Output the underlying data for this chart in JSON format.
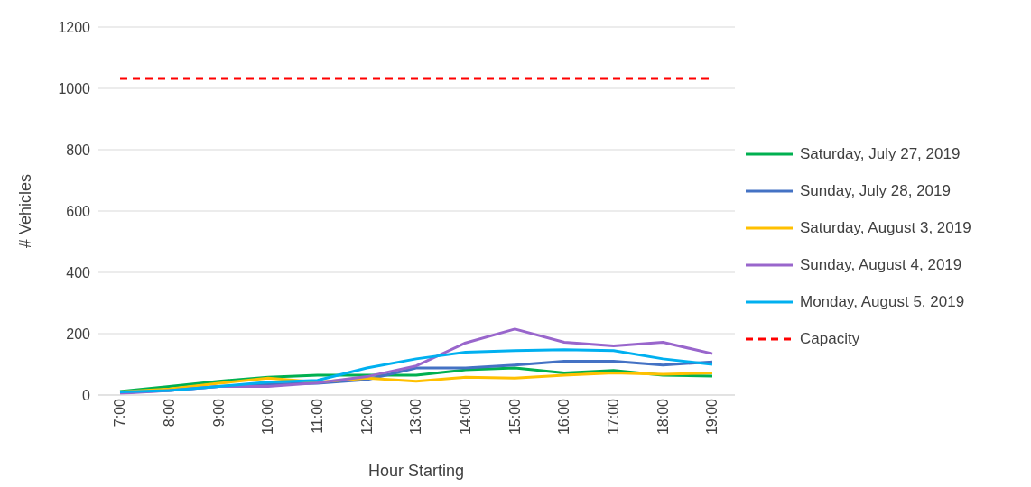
{
  "chart_data": {
    "type": "line",
    "xlabel": "Hour Starting",
    "ylabel": "# Vehicles",
    "categories": [
      "7:00",
      "8:00",
      "9:00",
      "10:00",
      "11:00",
      "12:00",
      "13:00",
      "14:00",
      "15:00",
      "16:00",
      "17:00",
      "18:00",
      "19:00"
    ],
    "series": [
      {
        "name": "Saturday, July 27, 2019",
        "color": "#00b050",
        "values": [
          12,
          28,
          45,
          58,
          65,
          65,
          65,
          82,
          88,
          72,
          80,
          65,
          62
        ]
      },
      {
        "name": "Sunday, July 28, 2019",
        "color": "#4472c4",
        "values": [
          8,
          15,
          28,
          35,
          38,
          50,
          88,
          88,
          98,
          110,
          110,
          98,
          108
        ]
      },
      {
        "name": "Saturday, August 3, 2019",
        "color": "#ffc000",
        "values": [
          10,
          20,
          38,
          55,
          42,
          55,
          45,
          58,
          55,
          65,
          72,
          68,
          72
        ]
      },
      {
        "name": "Sunday, August 4, 2019",
        "color": "#9966cc",
        "values": [
          5,
          15,
          28,
          28,
          40,
          60,
          95,
          170,
          215,
          172,
          160,
          172,
          135
        ]
      },
      {
        "name": "Monday, August 5, 2019",
        "color": "#00b0f0",
        "values": [
          10,
          15,
          28,
          42,
          48,
          88,
          118,
          140,
          145,
          148,
          145,
          118,
          100
        ]
      },
      {
        "name": "Capacity",
        "color": "#ff0000",
        "line_style": "dashed",
        "values": [
          1032,
          1032,
          1032,
          1032,
          1032,
          1032,
          1032,
          1032,
          1032,
          1032,
          1032,
          1032,
          1032
        ]
      }
    ],
    "ylim": [
      0,
      1200
    ],
    "yticks": [
      0,
      200,
      400,
      600,
      800,
      1000,
      1200
    ],
    "grid": "y",
    "legend": "right",
    "marker": "none"
  }
}
